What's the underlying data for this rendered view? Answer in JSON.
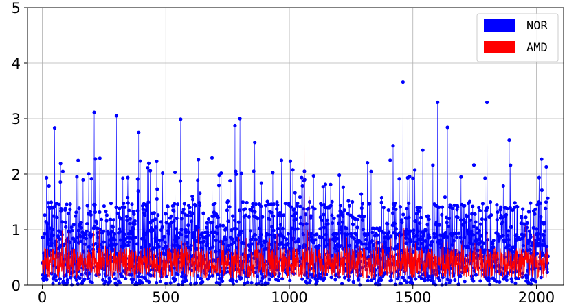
{
  "chart_data": {
    "type": "scatter",
    "title": "",
    "xlabel": "",
    "ylabel": "",
    "xlim": [
      -60,
      2110
    ],
    "ylim": [
      0,
      5
    ],
    "grid": true,
    "legend_position": "top-right",
    "x_ticks": [
      0,
      500,
      1000,
      1500,
      2000
    ],
    "y_ticks": [
      0,
      1,
      2,
      3,
      4,
      5
    ],
    "x_tick_labels": [
      "0",
      "500",
      "1000",
      "1500",
      "2000"
    ],
    "y_tick_labels": [
      "0",
      "1",
      "2",
      "3",
      "4",
      "5"
    ],
    "n_points": 2048,
    "series": [
      {
        "name": "NOR",
        "color": "#0000ff",
        "style": "stem-with-markers",
        "typical_range": [
          0,
          1.4
        ],
        "peaks": [
          [
            50,
            2.83
          ],
          [
            210,
            3.11
          ],
          [
            300,
            3.05
          ],
          [
            390,
            2.75
          ],
          [
            560,
            2.99
          ],
          [
            780,
            2.87
          ],
          [
            800,
            3.0
          ],
          [
            860,
            2.57
          ],
          [
            1460,
            3.66
          ],
          [
            1600,
            3.29
          ],
          [
            1640,
            2.84
          ],
          [
            1800,
            3.29
          ],
          [
            1890,
            2.61
          ],
          [
            1540,
            2.43
          ],
          [
            1420,
            2.51
          ],
          [
            2040,
            2.13
          ]
        ]
      },
      {
        "name": "AMD",
        "color": "#ff0000",
        "style": "line",
        "typical_range": [
          0.1,
          0.9
        ],
        "peaks": [
          [
            1060,
            2.72
          ],
          [
            1080,
            1.6
          ]
        ]
      }
    ]
  }
}
